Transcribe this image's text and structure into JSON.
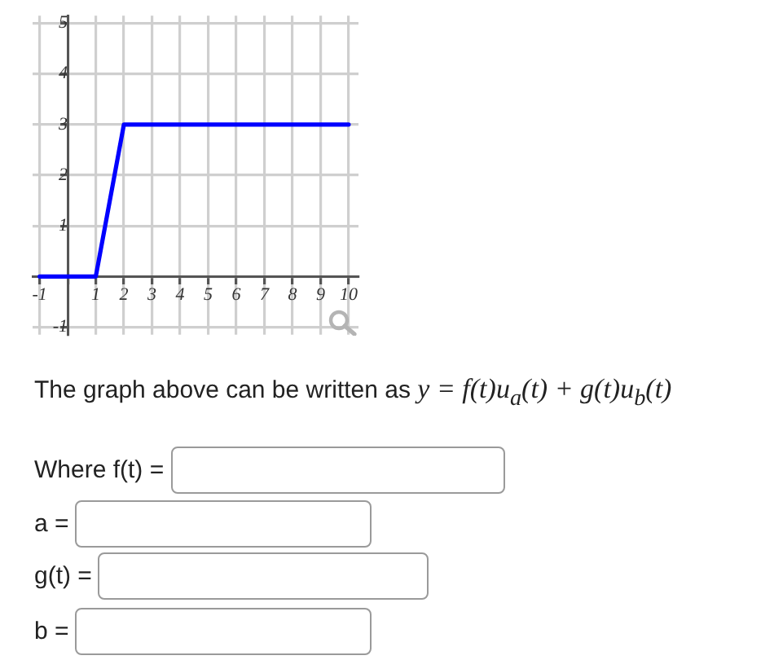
{
  "chart_data": {
    "type": "line",
    "x": [
      -1,
      1,
      2,
      10
    ],
    "values": [
      0,
      0,
      3,
      3
    ],
    "color": "#0000ff",
    "xlim": [
      -1.25,
      10.35
    ],
    "ylim": [
      -1.15,
      5.15
    ],
    "xticks": [
      -1,
      {
        "value": 0,
        "label": null
      },
      1,
      2,
      3,
      4,
      5,
      6,
      7,
      8,
      9,
      10
    ],
    "yticks": [
      -1,
      {
        "value": 0,
        "label": null
      },
      1,
      2,
      3,
      4,
      5
    ],
    "grid": true,
    "annotations": [
      "The graph above can be written as",
      "y = f(t)u$_{a}$(t) + g(t)u$_{b}$(t)",
      "Where f(t) =",
      "a =",
      "g(t) =",
      "b ="
    ]
  }
}
